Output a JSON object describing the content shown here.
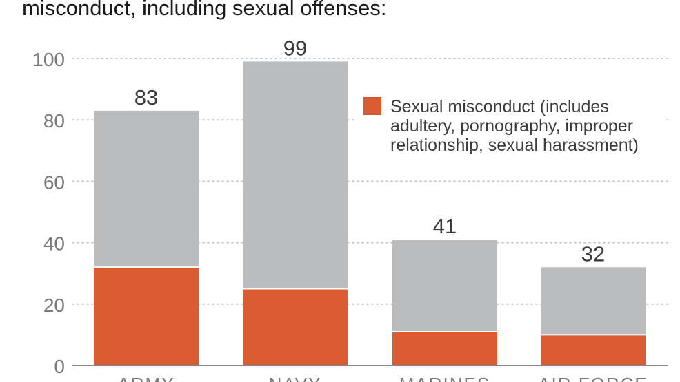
{
  "chart_data": {
    "type": "bar",
    "stacked": true,
    "title": "misconduct, including sexual offenses:",
    "categories": [
      "ARMY",
      "NAVY",
      "MARINES",
      "AIR FORCE"
    ],
    "totals": [
      83,
      99,
      41,
      32
    ],
    "series": [
      {
        "name": "Sexual misconduct (includes adultery, pornography, improper relationship, sexual harassment)",
        "legend_lines": [
          "Sexual misconduct (includes",
          "adultery, pornography, improper",
          "relationship, sexual harassment)"
        ],
        "values": [
          32,
          25,
          11,
          10
        ],
        "color": "#d95b32"
      },
      {
        "values": [
          51,
          74,
          30,
          22
        ],
        "color": "#bbbcbe"
      }
    ],
    "ylim": [
      0,
      100
    ],
    "yticks": [
      0,
      20,
      40,
      60,
      80,
      100
    ],
    "grid": true,
    "legend_position": "top-right",
    "xlabel": "",
    "ylabel": ""
  },
  "colors": {
    "text": "#3c3c3c",
    "tick_text": "#7a7a7a",
    "grid": "#c9c9c9",
    "axis": "#888888"
  }
}
